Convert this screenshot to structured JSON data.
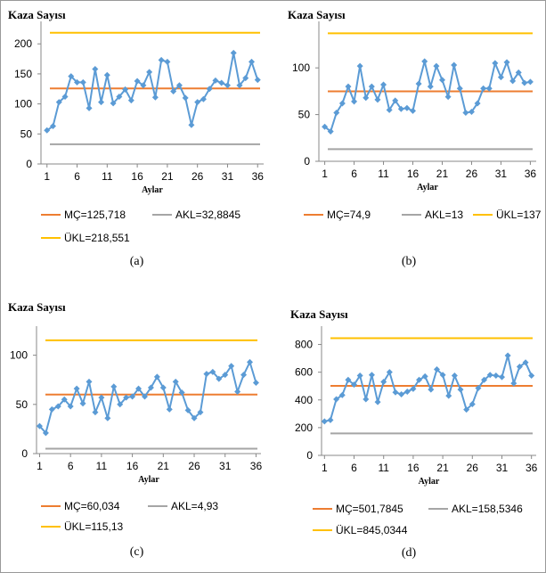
{
  "chart_data": [
    {
      "type": "line",
      "title": "Kaza Sayısı",
      "xlabel": "Aylar",
      "caption": "(a)",
      "x": [
        1,
        2,
        3,
        4,
        5,
        6,
        7,
        8,
        9,
        10,
        11,
        12,
        13,
        14,
        15,
        16,
        17,
        18,
        19,
        20,
        21,
        22,
        23,
        24,
        25,
        26,
        27,
        28,
        29,
        30,
        31,
        32,
        33,
        34,
        35,
        36
      ],
      "xlim": [
        0,
        37
      ],
      "xticks": [
        1,
        6,
        11,
        16,
        21,
        26,
        31,
        36
      ],
      "ylim": [
        0,
        230
      ],
      "yticks": [
        0,
        50,
        100,
        150,
        200
      ],
      "series": [
        {
          "color": "#5b9bd5",
          "values": [
            56,
            63,
            103,
            112,
            146,
            136,
            136,
            93,
            158,
            103,
            148,
            101,
            112,
            124,
            106,
            138,
            131,
            153,
            111,
            173,
            170,
            121,
            131,
            110,
            65,
            103,
            108,
            125,
            139,
            135,
            131,
            185,
            131,
            143,
            170,
            140
          ]
        }
      ],
      "hlines": [
        {
          "name": "MÇ=125,718",
          "value": 125.718,
          "color": "#ed7d31"
        },
        {
          "name": "AKL=32,8845",
          "value": 32.8845,
          "color": "#a5a5a5"
        },
        {
          "name": "ÜKL=218,551",
          "value": 218.551,
          "color": "#ffc000"
        }
      ]
    },
    {
      "type": "line",
      "title": "Kaza Sayısı",
      "xlabel": "Aylar",
      "caption": "(b)",
      "x": [
        1,
        2,
        3,
        4,
        5,
        6,
        7,
        8,
        9,
        10,
        11,
        12,
        13,
        14,
        15,
        16,
        17,
        18,
        19,
        20,
        21,
        22,
        23,
        24,
        25,
        26,
        27,
        28,
        29,
        30,
        31,
        32,
        33,
        34,
        35,
        36
      ],
      "xlim": [
        0,
        37
      ],
      "xticks": [
        1,
        6,
        11,
        16,
        21,
        26,
        31,
        36
      ],
      "ylim": [
        0,
        145
      ],
      "yticks": [
        0,
        50,
        100
      ],
      "series": [
        {
          "color": "#5b9bd5",
          "values": [
            37,
            32,
            52,
            62,
            80,
            64,
            102,
            68,
            80,
            66,
            82,
            55,
            65,
            56,
            57,
            54,
            83,
            107,
            80,
            102,
            87,
            69,
            103,
            78,
            52,
            53,
            62,
            78,
            78,
            105,
            90,
            106,
            86,
            95,
            84,
            85
          ]
        }
      ],
      "hlines": [
        {
          "name": "MÇ=74,9",
          "value": 74.9,
          "color": "#ed7d31"
        },
        {
          "name": "AKL=13",
          "value": 13,
          "color": "#a5a5a5"
        },
        {
          "name": "ÜKL=137",
          "value": 137,
          "color": "#ffc000"
        }
      ]
    },
    {
      "type": "line",
      "title": "Kaza Sayısı",
      "xlabel": "Aylar",
      "caption": "(c)",
      "x": [
        1,
        2,
        3,
        4,
        5,
        6,
        7,
        8,
        9,
        10,
        11,
        12,
        13,
        14,
        15,
        16,
        17,
        18,
        19,
        20,
        21,
        22,
        23,
        24,
        25,
        26,
        27,
        28,
        29,
        30,
        31,
        32,
        33,
        34,
        35,
        36
      ],
      "xlim": [
        0.5,
        36.8
      ],
      "xticks": [
        1,
        6,
        11,
        16,
        21,
        26,
        31,
        36
      ],
      "ylim": [
        0,
        125
      ],
      "yticks": [
        0,
        50,
        100
      ],
      "series": [
        {
          "color": "#5b9bd5",
          "values": [
            28,
            21,
            45,
            48,
            55,
            48,
            66,
            51,
            73,
            42,
            57,
            36,
            68,
            50,
            57,
            58,
            66,
            58,
            67,
            78,
            67,
            45,
            73,
            62,
            44,
            36,
            42,
            81,
            83,
            76,
            80,
            89,
            63,
            80,
            93,
            72
          ]
        }
      ],
      "hlines": [
        {
          "name": "MÇ=60,034",
          "value": 60.034,
          "color": "#ed7d31"
        },
        {
          "name": "AKL=4,93",
          "value": 4.93,
          "color": "#a5a5a5"
        },
        {
          "name": "ÜKL=115,13",
          "value": 115.13,
          "color": "#ffc000"
        }
      ]
    },
    {
      "type": "line",
      "title": "Kaza Sayısı",
      "xlabel": "Aylar",
      "caption": "(d)",
      "x": [
        1,
        2,
        3,
        4,
        5,
        6,
        7,
        8,
        9,
        10,
        11,
        12,
        13,
        14,
        15,
        16,
        17,
        18,
        19,
        20,
        21,
        22,
        23,
        24,
        25,
        26,
        27,
        28,
        29,
        30,
        31,
        32,
        33,
        34,
        35,
        36
      ],
      "xlim": [
        0.5,
        36.8
      ],
      "xticks": [
        1,
        6,
        11,
        16,
        21,
        26,
        31,
        36
      ],
      "ylim": [
        0,
        900
      ],
      "yticks": [
        0,
        200,
        400,
        600,
        800
      ],
      "series": [
        {
          "color": "#5b9bd5",
          "values": [
            245,
            255,
            405,
            435,
            545,
            510,
            575,
            405,
            580,
            385,
            530,
            600,
            455,
            440,
            460,
            480,
            545,
            570,
            475,
            620,
            580,
            430,
            575,
            475,
            330,
            370,
            485,
            545,
            580,
            575,
            565,
            720,
            520,
            640,
            670,
            575
          ]
        }
      ],
      "hlines": [
        {
          "name": "MÇ=501,7845",
          "value": 501.7845,
          "color": "#ed7d31"
        },
        {
          "name": "AKL=158,5346",
          "value": 158.5346,
          "color": "#a5a5a5"
        },
        {
          "name": "ÜKL=845,0344",
          "value": 845.0344,
          "color": "#ffc000"
        }
      ]
    }
  ]
}
